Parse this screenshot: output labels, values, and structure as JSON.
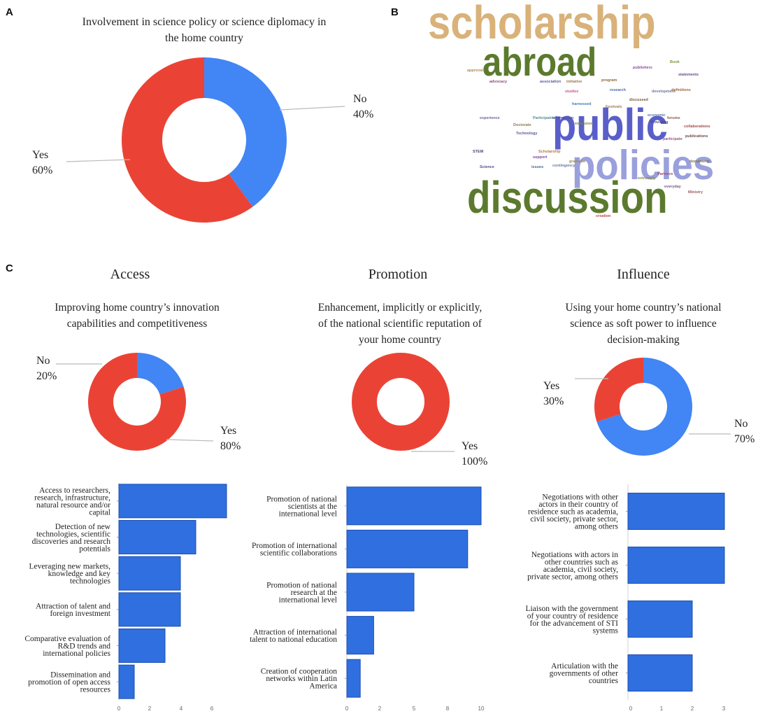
{
  "panels": {
    "a": "A",
    "b": "B",
    "c": "C"
  },
  "wordcloud": {
    "big": [
      {
        "text": "scholarship",
        "color": "#d9b27a"
      },
      {
        "text": "abroad",
        "color": "#5c7a2e"
      },
      {
        "text": "public",
        "color": "#5a5ec9"
      },
      {
        "text": "policies",
        "color": "#9aa0dc"
      },
      {
        "text": "discussion",
        "color": "#5c7a2e"
      }
    ],
    "small": [
      {
        "text": "publishers",
        "color": "#8a4fa0"
      },
      {
        "text": "Book",
        "color": "#7a9a3a"
      },
      {
        "text": "statements",
        "color": "#6a4a8a"
      },
      {
        "text": "approval",
        "color": "#b08a5a"
      },
      {
        "text": "program",
        "color": "#8a6a3a"
      },
      {
        "text": "studies",
        "color": "#c05a8a"
      },
      {
        "text": "research",
        "color": "#4a6ab0"
      },
      {
        "text": "development",
        "color": "#6a7a9a"
      },
      {
        "text": "association",
        "color": "#5a5a9a"
      },
      {
        "text": "initiative",
        "color": "#9a7a4a"
      },
      {
        "text": "advocacy",
        "color": "#8a4a7a"
      },
      {
        "text": "harnessed",
        "color": "#4a7ab0"
      },
      {
        "text": "discussed",
        "color": "#7a5a3a"
      },
      {
        "text": "definitions",
        "color": "#9a6a3a"
      },
      {
        "text": "Festivals",
        "color": "#a08050"
      },
      {
        "text": "economic",
        "color": "#5a7a9a"
      },
      {
        "text": "information",
        "color": "#4a5aa0"
      },
      {
        "text": "extension",
        "color": "#7a8a3a"
      },
      {
        "text": "forums",
        "color": "#8a5a5a"
      },
      {
        "text": "experience",
        "color": "#6a6aa0"
      },
      {
        "text": "Participation",
        "color": "#5a8a8a"
      },
      {
        "text": "collaborations",
        "color": "#a04a4a"
      },
      {
        "text": "Doctorate",
        "color": "#8a7a4a"
      },
      {
        "text": "Providing",
        "color": "#4a4a8a"
      },
      {
        "text": "publications",
        "color": "#6a4a4a"
      },
      {
        "text": "Technology",
        "color": "#5a5aa0"
      },
      {
        "text": "participate",
        "color": "#9a5a7a"
      },
      {
        "text": "Scholarship",
        "color": "#b07a4a"
      },
      {
        "text": "support",
        "color": "#7a4a9a"
      },
      {
        "text": "graduate",
        "color": "#9a8a5a"
      },
      {
        "text": "STEM",
        "color": "#4a4a7a"
      },
      {
        "text": "contingency",
        "color": "#6a7aa0"
      },
      {
        "text": "documents",
        "color": "#7a6a4a"
      },
      {
        "text": "Science",
        "color": "#5a4a8a"
      },
      {
        "text": "issues",
        "color": "#4a6a9a"
      },
      {
        "text": "Partners",
        "color": "#a04a6a"
      },
      {
        "text": "extremely",
        "color": "#8a8a4a"
      },
      {
        "text": "everyday",
        "color": "#7a5a8a"
      },
      {
        "text": "Ministry",
        "color": "#a05a5a"
      },
      {
        "text": "creation",
        "color": "#c04a4a"
      }
    ]
  },
  "section_c": {
    "access_heading": "Access",
    "promotion_heading": "Promotion",
    "influence_heading": "Influence"
  },
  "chart_data": [
    {
      "type": "pie",
      "donut": true,
      "title": [
        "Involvement in science policy or science diplomacy in",
        "the home country"
      ],
      "categories": [
        "No",
        "Yes"
      ],
      "values": [
        40,
        60
      ],
      "colors": [
        "#4285f4",
        "#ea4335"
      ],
      "labels": [
        [
          "No",
          "40%"
        ],
        [
          "Yes",
          "60%"
        ]
      ]
    },
    {
      "type": "pie",
      "donut": true,
      "title": [
        "Improving home country’s innovation",
        "capabilities and competitiveness"
      ],
      "categories": [
        "No",
        "Yes"
      ],
      "values": [
        20,
        80
      ],
      "colors": [
        "#4285f4",
        "#ea4335"
      ],
      "labels": [
        [
          "No",
          "20%"
        ],
        [
          "Yes",
          "80%"
        ]
      ]
    },
    {
      "type": "pie",
      "donut": true,
      "title": [
        "Enhancement, implicitly or explicitly,",
        "of the national scientific reputation of",
        "your home country"
      ],
      "categories": [
        "Yes"
      ],
      "values": [
        100
      ],
      "colors": [
        "#ea4335"
      ],
      "labels": [
        [
          "Yes",
          "100%"
        ]
      ]
    },
    {
      "type": "pie",
      "donut": true,
      "title": [
        "Using your home country’s national",
        "science as soft power to influence",
        "decision-making"
      ],
      "categories": [
        "No",
        "Yes"
      ],
      "values": [
        70,
        30
      ],
      "colors": [
        "#4285f4",
        "#ea4335"
      ],
      "labels": [
        [
          "No",
          "70%"
        ],
        [
          "Yes",
          "30%"
        ]
      ]
    },
    {
      "type": "bar",
      "orientation": "horizontal",
      "color": "#2f6fe0",
      "categories": [
        [
          "Access to researchers,",
          "research, infrastructure,",
          "natural resource and/or",
          "capital"
        ],
        [
          "Detection of new",
          "technologies, scientific",
          "discoveries and research",
          "potentials"
        ],
        [
          "Leveraging new markets,",
          "knowledge and key",
          "technologies"
        ],
        [
          "Attraction of talent and",
          "foreign investment"
        ],
        [
          "Comparative evaluation of",
          "R&D trends and",
          "international policies"
        ],
        [
          "Dissemination and",
          "promotion of open access",
          "resources"
        ]
      ],
      "values": [
        7,
        5,
        4,
        4,
        3,
        1
      ],
      "xlim": [
        0,
        7
      ],
      "xticks": [
        "0",
        "2",
        "4",
        "6"
      ]
    },
    {
      "type": "bar",
      "orientation": "horizontal",
      "color": "#2f6fe0",
      "categories": [
        [
          "Promotion of national",
          "scientists at the",
          "international level"
        ],
        [
          "Promotion of international",
          "scientific collaborations"
        ],
        [
          "Promotion of national",
          "research at the",
          "international level"
        ],
        [
          "Attraction of international",
          "talent to national education"
        ],
        [
          "Creation of cooperation",
          "networks within Latin",
          "America"
        ]
      ],
      "values": [
        10,
        9,
        5,
        2,
        1
      ],
      "xlim": [
        0,
        10
      ],
      "xticks": [
        "0",
        "2",
        "5",
        "8",
        "10"
      ]
    },
    {
      "type": "bar",
      "orientation": "horizontal",
      "color": "#2f6fe0",
      "categories": [
        [
          "Negotiations with other",
          "actors in their country of",
          "residence such as academia,",
          "civil society, private sector,",
          "among others"
        ],
        [
          "Negotiations with actors in",
          "other countries such as",
          "academia, civil society,",
          "private sector, among others"
        ],
        [
          "Liaison with the government",
          "of your country of residence",
          "for the advancement of STI",
          "systems"
        ],
        [
          "Articulation with the",
          "governments of other",
          "countries"
        ]
      ],
      "values": [
        3,
        3,
        2,
        2
      ],
      "xlim": [
        0,
        3
      ],
      "xticks": [
        "0",
        "1",
        "2",
        "3"
      ]
    }
  ]
}
